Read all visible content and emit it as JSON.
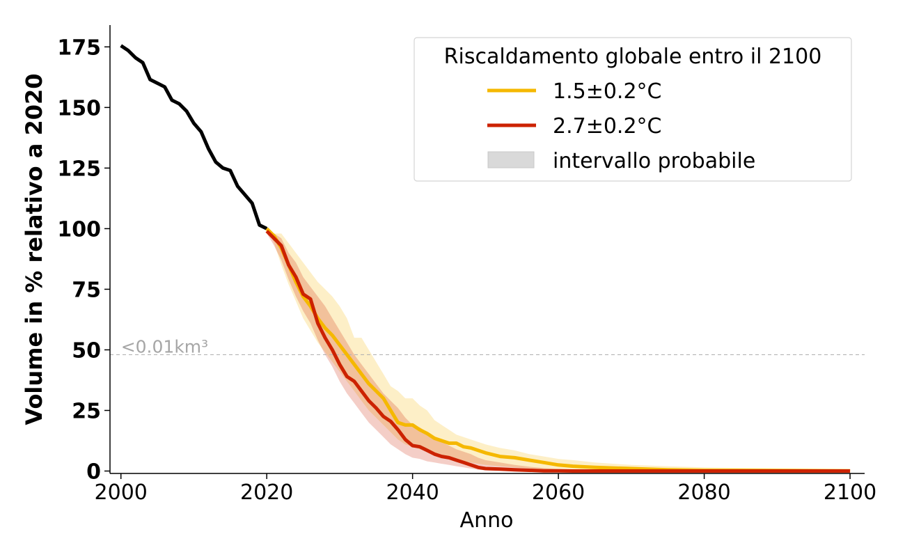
{
  "chart_data": {
    "type": "line",
    "xlabel": "Anno",
    "ylabel": "Volume in % relativo a 2020",
    "xlim": [
      1998.5,
      2102
    ],
    "ylim": [
      -1,
      184
    ],
    "xticks": [
      2000,
      2020,
      2040,
      2060,
      2080,
      2100
    ],
    "yticks": [
      0,
      25,
      50,
      75,
      100,
      125,
      150,
      175
    ],
    "grid": false,
    "legend": {
      "title": "Riscaldamento globale entro il 2100",
      "placement": "top-right",
      "entries": [
        {
          "label": "1.5±0.2°C",
          "color": "#f5b800",
          "kind": "line"
        },
        {
          "label": "2.7±0.2°C",
          "color": "#cc2200",
          "kind": "line"
        },
        {
          "label": "intervallo probabile",
          "color": "#d9d9d9",
          "kind": "patch"
        }
      ]
    },
    "threshold": {
      "y": 48,
      "label": "<0.01km³",
      "color": "#b3b3b3"
    },
    "series": [
      {
        "color": "#000000",
        "x": [
          2000,
          2001,
          2002,
          2003,
          2004,
          2005,
          2006,
          2007,
          2008,
          2009,
          2010,
          2011,
          2012,
          2013,
          2014,
          2015,
          2016,
          2017,
          2018,
          2019,
          2020
        ],
        "values": [
          175.5,
          173.5,
          170.5,
          168.5,
          161.5,
          160,
          158.5,
          153,
          151.5,
          148.5,
          143.5,
          140,
          133,
          127.5,
          125,
          124,
          117.5,
          114,
          110.5,
          101.5,
          100
        ]
      },
      {
        "name": "1.5±0.2°C",
        "color": "#f5b800",
        "x": [
          2020,
          2021,
          2022,
          2023,
          2024,
          2025,
          2026,
          2027,
          2028,
          2029,
          2030,
          2031,
          2032,
          2033,
          2034,
          2035,
          2036,
          2037,
          2038,
          2039,
          2040,
          2041,
          2042,
          2043,
          2044,
          2045,
          2046,
          2047,
          2048,
          2049,
          2050,
          2052,
          2054,
          2056,
          2058,
          2060,
          2062,
          2065,
          2070,
          2075,
          2080,
          2090,
          2100
        ],
        "values": [
          100,
          97,
          92,
          85,
          78,
          72,
          68,
          63,
          59,
          56,
          52,
          48,
          44,
          40,
          36,
          33,
          30,
          25,
          20,
          19,
          19,
          17,
          15.5,
          13.5,
          12.5,
          11.5,
          11.5,
          10,
          9.5,
          8.5,
          7.5,
          6,
          5.5,
          4.5,
          3.5,
          2.5,
          2,
          1.5,
          1,
          0.5,
          0.3,
          0.2,
          0.1
        ],
        "band_upper": [
          100,
          98,
          98,
          94,
          90,
          86,
          82,
          78,
          75,
          72,
          68,
          63,
          55,
          55,
          50,
          45,
          40,
          35,
          33,
          30,
          30,
          27,
          25,
          21,
          19,
          17,
          15,
          14,
          13,
          12,
          11,
          9.5,
          8.5,
          7,
          6,
          5,
          4.5,
          3.5,
          2.5,
          2,
          1.5,
          1,
          0.8
        ],
        "band_lower": [
          100,
          94,
          85,
          77,
          70,
          63,
          58,
          53,
          49,
          45,
          41,
          37,
          33,
          29,
          25,
          22,
          19,
          16,
          13,
          11,
          10,
          9,
          8,
          7,
          6,
          5,
          4.5,
          4,
          3.5,
          3,
          2.5,
          2,
          1.5,
          1,
          0.8,
          0.5,
          0.4,
          0.3,
          0.2,
          0.1,
          0,
          0,
          0
        ]
      },
      {
        "name": "2.7±0.2°C",
        "color": "#cc2200",
        "x": [
          2020,
          2021,
          2022,
          2023,
          2024,
          2025,
          2026,
          2027,
          2028,
          2029,
          2030,
          2031,
          2032,
          2033,
          2034,
          2035,
          2036,
          2037,
          2038,
          2039,
          2040,
          2041,
          2042,
          2043,
          2044,
          2045,
          2046,
          2047,
          2048,
          2049,
          2050,
          2052,
          2054,
          2056,
          2058,
          2060,
          2062,
          2065,
          2070,
          2080,
          2090,
          2100
        ],
        "values": [
          99,
          96,
          93,
          85,
          80,
          73,
          71,
          61,
          55,
          50,
          44,
          39,
          37,
          33,
          29,
          26,
          22.5,
          20.5,
          17,
          13,
          10.5,
          10,
          8.5,
          7,
          6,
          5.5,
          4.5,
          3.5,
          2.5,
          1.5,
          1,
          0.8,
          0.5,
          0.3,
          0.1,
          0.1,
          0,
          0,
          0,
          0,
          0,
          0
        ],
        "band_upper": [
          100,
          98,
          96,
          90,
          86,
          80,
          76,
          72,
          68,
          63,
          58,
          53,
          48,
          44,
          40,
          36,
          32,
          29,
          26,
          22,
          19,
          18,
          16,
          14,
          12,
          10.5,
          9,
          8,
          7,
          5.5,
          4.5,
          3.5,
          2.5,
          1.8,
          1.2,
          0.8,
          0.5,
          0.3,
          0.2,
          0.1,
          0,
          0
        ],
        "band_lower": [
          98,
          93,
          87,
          79,
          72,
          66,
          61,
          54,
          48,
          43,
          37,
          32,
          28,
          24,
          20,
          17,
          14,
          11,
          9,
          7,
          5.5,
          5,
          4,
          3.5,
          3,
          2.5,
          2,
          1.5,
          1,
          0.5,
          0.3,
          0.2,
          0.1,
          0,
          0,
          0,
          0,
          0,
          0,
          0,
          0,
          0
        ]
      }
    ]
  }
}
